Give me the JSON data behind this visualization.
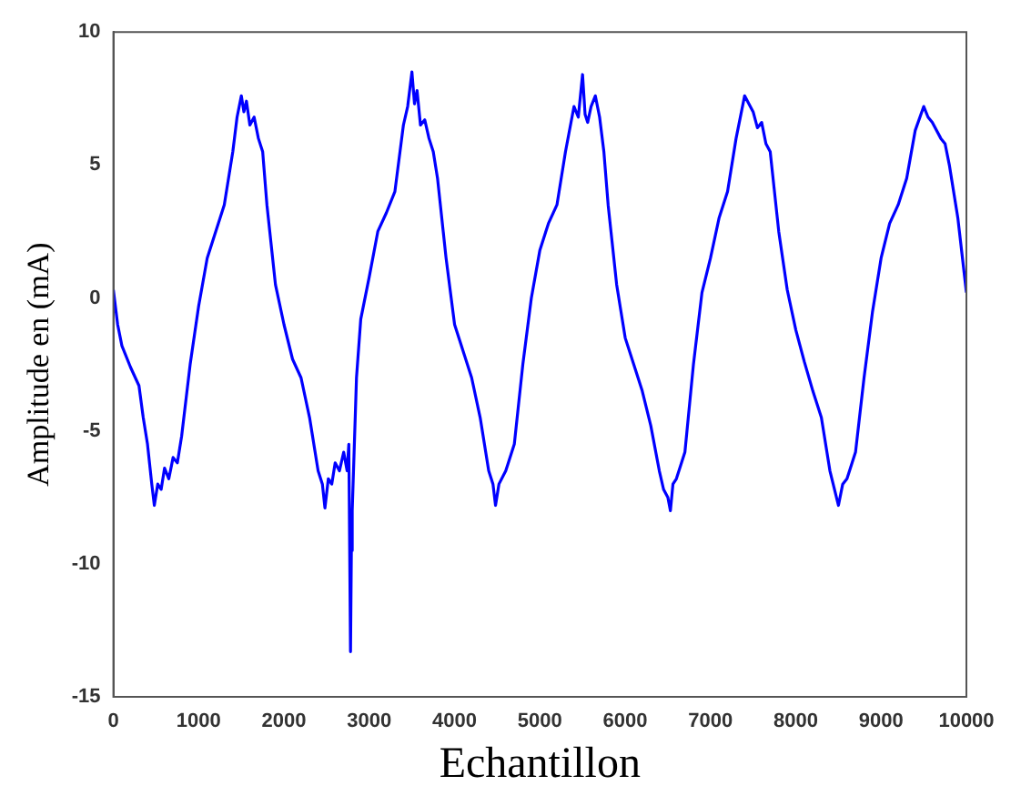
{
  "chart_data": {
    "type": "line",
    "xlabel": "Echantillon",
    "ylabel": "Amplitude en (mA)",
    "xlim": [
      0,
      10000
    ],
    "ylim": [
      -15,
      10
    ],
    "xticks": [
      0,
      1000,
      2000,
      3000,
      4000,
      5000,
      6000,
      7000,
      8000,
      9000,
      10000
    ],
    "yticks": [
      -15,
      -10,
      -5,
      0,
      5,
      10
    ],
    "grid": false,
    "legend": false,
    "marker": "none",
    "line_style": "solid",
    "series": [
      {
        "color": "#0000ff",
        "x": [
          0,
          50,
          100,
          200,
          300,
          350,
          400,
          450,
          480,
          520,
          560,
          600,
          650,
          700,
          750,
          800,
          900,
          1000,
          1100,
          1200,
          1300,
          1400,
          1450,
          1500,
          1530,
          1560,
          1600,
          1650,
          1700,
          1750,
          1800,
          1900,
          2000,
          2100,
          2200,
          2300,
          2400,
          2450,
          2480,
          2520,
          2560,
          2600,
          2650,
          2700,
          2740,
          2760,
          2780,
          2790,
          2800,
          2820,
          2850,
          2900,
          3000,
          3100,
          3200,
          3300,
          3400,
          3450,
          3500,
          3530,
          3560,
          3600,
          3650,
          3700,
          3750,
          3800,
          3900,
          4000,
          4100,
          4200,
          4300,
          4400,
          4450,
          4480,
          4520,
          4600,
          4700,
          4800,
          4900,
          5000,
          5100,
          5200,
          5300,
          5400,
          5450,
          5500,
          5530,
          5560,
          5600,
          5650,
          5700,
          5750,
          5800,
          5900,
          6000,
          6100,
          6200,
          6300,
          6400,
          6450,
          6500,
          6530,
          6560,
          6600,
          6700,
          6800,
          6900,
          7000,
          7100,
          7200,
          7300,
          7400,
          7500,
          7550,
          7600,
          7650,
          7700,
          7750,
          7800,
          7900,
          8000,
          8100,
          8200,
          8300,
          8400,
          8500,
          8550,
          8600,
          8700,
          8800,
          8900,
          9000,
          9100,
          9200,
          9300,
          9400,
          9500,
          9550,
          9600,
          9700,
          9750,
          9800,
          9900,
          10000
        ],
        "values": [
          0.3,
          -1,
          -1.8,
          -2.6,
          -3.3,
          -4.5,
          -5.5,
          -7,
          -7.8,
          -7,
          -7.2,
          -6.4,
          -6.8,
          -6,
          -6.2,
          -5.2,
          -2.5,
          -0.3,
          1.5,
          2.5,
          3.5,
          5.5,
          6.8,
          7.6,
          7,
          7.4,
          6.5,
          6.8,
          6,
          5.5,
          3.5,
          0.5,
          -1,
          -2.3,
          -3,
          -4.5,
          -6.5,
          -7,
          -7.9,
          -6.8,
          -7,
          -6.2,
          -6.5,
          -5.8,
          -6.5,
          -5.5,
          -13.3,
          -9.5,
          -8,
          -6,
          -3,
          -0.8,
          0.8,
          2.5,
          3.2,
          4,
          6.5,
          7.2,
          8.5,
          7.3,
          7.8,
          6.5,
          6.7,
          6,
          5.5,
          4.5,
          1.5,
          -1,
          -2,
          -3,
          -4.5,
          -6.5,
          -7,
          -7.8,
          -7,
          -6.5,
          -5.5,
          -2.5,
          0,
          1.8,
          2.8,
          3.5,
          5.5,
          7.2,
          6.8,
          8.4,
          6.9,
          6.6,
          7.2,
          7.6,
          6.8,
          5.5,
          3.5,
          0.5,
          -1.5,
          -2.5,
          -3.5,
          -4.8,
          -6.5,
          -7.2,
          -7.5,
          -8,
          -7,
          -6.8,
          -5.8,
          -2.5,
          0.2,
          1.5,
          3,
          4,
          6,
          7.6,
          7,
          6.4,
          6.6,
          5.8,
          5.5,
          4,
          2.5,
          0.3,
          -1.2,
          -2.4,
          -3.5,
          -4.5,
          -6.5,
          -7.8,
          -7,
          -6.8,
          -5.8,
          -3,
          -0.5,
          1.5,
          2.8,
          3.5,
          4.5,
          6.3,
          7.2,
          6.8,
          6.6,
          6,
          5.8,
          5,
          3,
          0.2
        ]
      }
    ]
  }
}
